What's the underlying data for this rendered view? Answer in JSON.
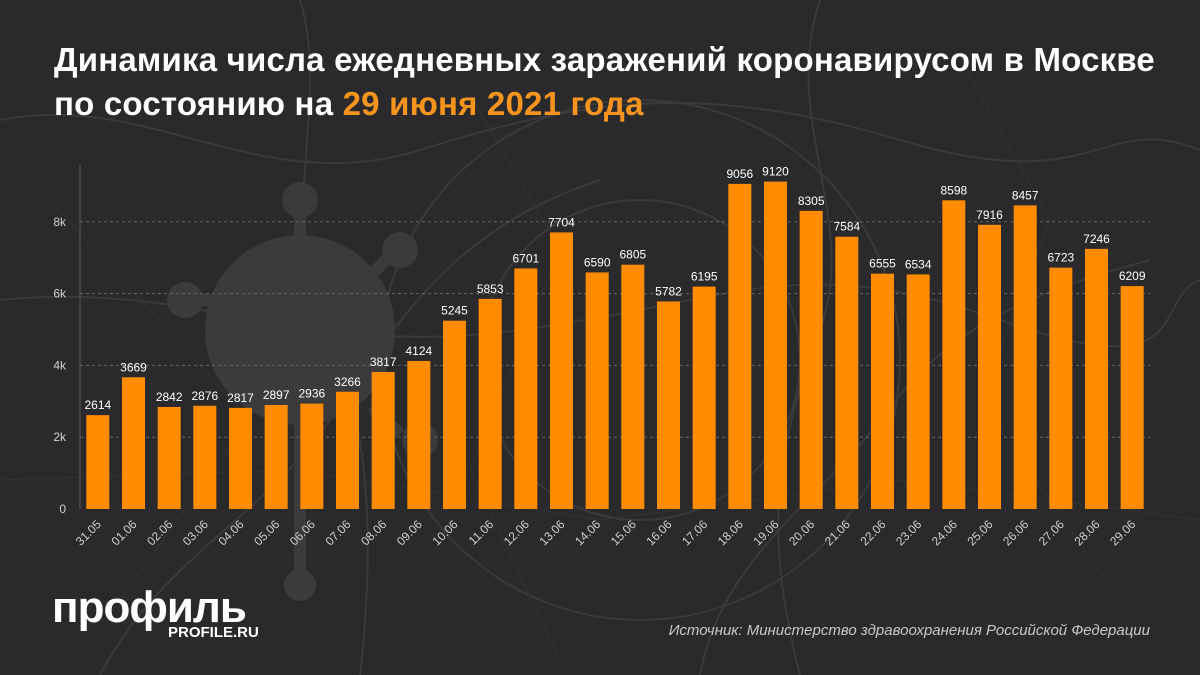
{
  "header": {
    "title_main": "Динамика числа ежедневных заражений коронавирусом в Москве по состоянию на",
    "title_accent": "29 июня 2021 года"
  },
  "brand": {
    "logo": "профиль",
    "site": "PROFILE.RU"
  },
  "source": "Источник: Министерство здравоохранения Российской Федерации",
  "colors": {
    "bar": "#ff8c00",
    "accent": "#f7941d",
    "background": "#2a2a2c"
  },
  "chart_data": {
    "type": "bar",
    "categories": [
      "31.05",
      "01.06",
      "02.06",
      "03.06",
      "04.06",
      "05.06",
      "06.06",
      "07.06",
      "08.06",
      "09.06",
      "10.06",
      "11.06",
      "12.06",
      "13.06",
      "14.06",
      "15.06",
      "16.06",
      "17.06",
      "18.06",
      "19.06",
      "20.06",
      "21.06",
      "22.06",
      "23.06",
      "24.06",
      "25.06",
      "26.06",
      "27.06",
      "28.06",
      "29.06"
    ],
    "values": [
      2614,
      3669,
      2842,
      2876,
      2817,
      2897,
      2936,
      3266,
      3817,
      4124,
      5245,
      5853,
      6701,
      7704,
      6590,
      6805,
      5782,
      6195,
      9056,
      9120,
      8305,
      7584,
      6555,
      6534,
      8598,
      7916,
      8457,
      6723,
      7246,
      6209
    ],
    "ylim": [
      0,
      10000
    ],
    "yticks": [
      0,
      2000,
      4000,
      6000,
      8000
    ],
    "ytick_labels": [
      "0",
      "2k",
      "4k",
      "6k",
      "8k"
    ],
    "grid": true,
    "title": "",
    "xlabel": "",
    "ylabel": ""
  }
}
